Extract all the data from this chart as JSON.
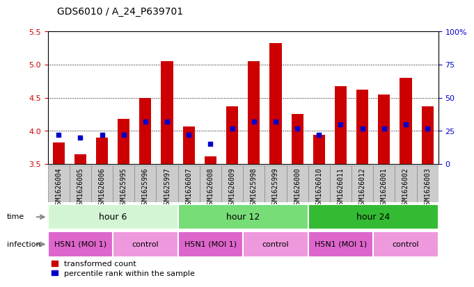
{
  "title": "GDS6010 / A_24_P639701",
  "samples": [
    "GSM1626004",
    "GSM1626005",
    "GSM1626006",
    "GSM1625995",
    "GSM1625996",
    "GSM1625997",
    "GSM1626007",
    "GSM1626008",
    "GSM1626009",
    "GSM1625998",
    "GSM1625999",
    "GSM1626000",
    "GSM1626010",
    "GSM1626011",
    "GSM1626012",
    "GSM1626001",
    "GSM1626002",
    "GSM1626003"
  ],
  "transformed_counts": [
    3.82,
    3.65,
    3.9,
    4.18,
    4.5,
    5.05,
    4.07,
    3.62,
    4.37,
    5.05,
    5.33,
    4.25,
    3.94,
    4.67,
    4.62,
    4.55,
    4.8,
    4.37
  ],
  "percentile_ranks": [
    22,
    20,
    22,
    22,
    32,
    32,
    22,
    15,
    27,
    32,
    32,
    27,
    22,
    30,
    27,
    27,
    30,
    27
  ],
  "ylim_left": [
    3.5,
    5.5
  ],
  "ylim_right": [
    0,
    100
  ],
  "yticks_left": [
    3.5,
    4.0,
    4.5,
    5.0,
    5.5
  ],
  "yticks_right": [
    0,
    25,
    50,
    75,
    100
  ],
  "ytick_labels_right": [
    "0",
    "25",
    "50",
    "75",
    "100%"
  ],
  "grid_values": [
    4.0,
    4.5,
    5.0
  ],
  "bar_color": "#cc0000",
  "dot_color": "#0000cc",
  "bar_bottom": 3.5,
  "bar_width": 0.55,
  "time_groups": [
    {
      "label": "hour 6",
      "start": 0,
      "end": 6,
      "color": "#d4f5d4"
    },
    {
      "label": "hour 12",
      "start": 6,
      "end": 12,
      "color": "#77dd77"
    },
    {
      "label": "hour 24",
      "start": 12,
      "end": 18,
      "color": "#33bb33"
    }
  ],
  "infection_groups": [
    {
      "label": "H5N1 (MOI 1)",
      "start": 0,
      "end": 3,
      "color": "#dd66cc"
    },
    {
      "label": "control",
      "start": 3,
      "end": 6,
      "color": "#ee99dd"
    },
    {
      "label": "H5N1 (MOI 1)",
      "start": 6,
      "end": 9,
      "color": "#dd66cc"
    },
    {
      "label": "control",
      "start": 9,
      "end": 12,
      "color": "#ee99dd"
    },
    {
      "label": "H5N1 (MOI 1)",
      "start": 12,
      "end": 15,
      "color": "#dd66cc"
    },
    {
      "label": "control",
      "start": 15,
      "end": 18,
      "color": "#ee99dd"
    }
  ],
  "time_label": "time",
  "infection_label": "infection",
  "legend_red_label": "transformed count",
  "legend_blue_label": "percentile rank within the sample",
  "tick_label_color_left": "#cc0000",
  "tick_label_color_right": "#0000cc",
  "background_color": "#ffffff",
  "sample_box_color": "#cccccc",
  "sample_box_edge": "#888888",
  "title_fontsize": 10,
  "tick_fontsize": 8,
  "sample_fontsize": 7
}
